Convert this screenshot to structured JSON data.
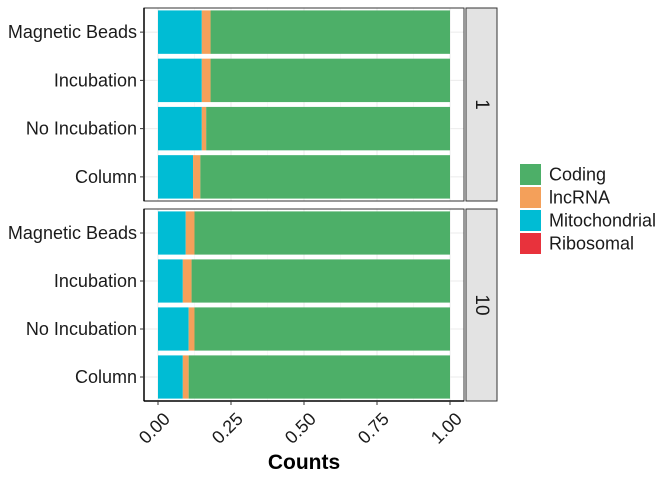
{
  "chart_data": {
    "type": "bar",
    "orientation": "horizontal",
    "stacked": true,
    "xlabel": "Counts",
    "ylabel": "",
    "xlim": [
      0,
      1
    ],
    "x_ticks": [
      "0.00",
      "0.25",
      "0.50",
      "0.75",
      "1.00"
    ],
    "x_tick_values": [
      0,
      0.25,
      0.5,
      0.75,
      1.0
    ],
    "grid": true,
    "legend_position": "right",
    "categories": [
      "Magnetic Beads",
      "Incubation",
      "No Incubation",
      "Column"
    ],
    "series_order": [
      "Mitochondrial",
      "lncRNA",
      "Coding",
      "Ribosomal"
    ],
    "legend_entries": [
      "Coding",
      "lncRNA",
      "Mitochondrial",
      "Ribosomal"
    ],
    "colors": {
      "Coding": "#4daf68",
      "lncRNA": "#f4a05a",
      "Mitochondrial": "#00bcd4",
      "Ribosomal": "#e8323c"
    },
    "panels": [
      {
        "label": "1",
        "series": [
          {
            "name": "Mitochondrial",
            "values": [
              0.15,
              0.15,
              0.15,
              0.12
            ]
          },
          {
            "name": "lncRNA",
            "values": [
              0.03,
              0.03,
              0.015,
              0.025
            ]
          },
          {
            "name": "Coding",
            "values": [
              0.82,
              0.82,
              0.835,
              0.855
            ]
          },
          {
            "name": "Ribosomal",
            "values": [
              0.0,
              0.0,
              0.0,
              0.0
            ]
          }
        ]
      },
      {
        "label": "10",
        "series": [
          {
            "name": "Mitochondrial",
            "values": [
              0.095,
              0.085,
              0.105,
              0.085
            ]
          },
          {
            "name": "lncRNA",
            "values": [
              0.03,
              0.03,
              0.02,
              0.02
            ]
          },
          {
            "name": "Coding",
            "values": [
              0.875,
              0.885,
              0.875,
              0.895
            ]
          },
          {
            "name": "Ribosomal",
            "values": [
              0.0,
              0.0,
              0.0,
              0.0
            ]
          }
        ]
      }
    ]
  }
}
